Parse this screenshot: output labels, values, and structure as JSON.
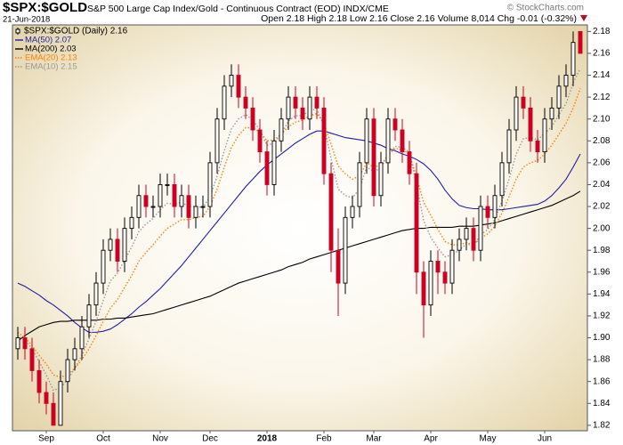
{
  "chart_data": {
    "type": "candlestick",
    "symbol": "$SPX:$GOLD",
    "title": "S&P 500 Large Cap Index/Gold - Continuous Contract (EOD) INDX/CME",
    "subtitle": "21-Jun-2018",
    "quote": "Open 2.18 High 2.18 Low 2.16 Close 2.16 Volume 8,014 Chg -0.01 (-0.32%)",
    "watermark": "© StockCharts.com",
    "name": "$SPX:$GOLD (Daily) 2.16",
    "up_color": "#000000",
    "down_color": "#cc0022",
    "legend": "top-left",
    "categories": [
      null,
      null,
      null,
      null,
      "Sep",
      null,
      null,
      null,
      null,
      null,
      null,
      null,
      "Oct",
      null,
      null,
      null,
      null,
      null,
      null,
      null,
      "Nov",
      null,
      null,
      null,
      null,
      null,
      null,
      "Dec",
      null,
      null,
      null,
      null,
      null,
      null,
      null,
      "2018",
      null,
      null,
      null,
      null,
      null,
      null,
      null,
      "Feb",
      null,
      null,
      null,
      null,
      null,
      null,
      "Mar",
      null,
      null,
      null,
      null,
      null,
      null,
      null,
      "Apr",
      null,
      null,
      null,
      null,
      null,
      null,
      null,
      "May",
      null,
      null,
      null,
      null,
      null,
      null,
      null,
      "Jun",
      null,
      null,
      null,
      null,
      null
    ],
    "open": [
      1.89,
      1.9,
      1.89,
      1.87,
      1.85,
      1.84,
      1.82,
      1.86,
      1.88,
      1.89,
      1.91,
      1.93,
      1.95,
      1.98,
      1.99,
      1.97,
      2.0,
      2.01,
      2.03,
      2.02,
      2.02,
      2.04,
      2.04,
      2.02,
      2.03,
      2.01,
      2.02,
      2.02,
      2.06,
      2.1,
      2.13,
      2.14,
      2.12,
      2.11,
      2.09,
      2.07,
      2.04,
      2.08,
      2.1,
      2.12,
      2.11,
      2.1,
      2.12,
      2.11,
      2.05,
      1.98,
      1.95,
      2.01,
      2.02,
      2.06,
      2.1,
      2.03,
      2.06,
      2.1,
      2.09,
      2.07,
      2.05,
      1.96,
      1.93,
      1.97,
      1.96,
      1.95,
      1.98,
      1.99,
      2.0,
      1.98,
      2.02,
      2.01,
      2.03,
      2.06,
      2.09,
      2.12,
      2.11,
      2.08,
      2.07,
      2.1,
      2.11,
      2.13,
      2.14,
      2.18
    ],
    "high": [
      1.91,
      1.91,
      1.9,
      1.88,
      1.86,
      1.85,
      1.87,
      1.89,
      1.9,
      1.92,
      1.94,
      1.96,
      1.99,
      2.0,
      2.0,
      2.01,
      2.02,
      2.04,
      2.04,
      2.03,
      2.05,
      2.05,
      2.05,
      2.04,
      2.04,
      2.03,
      2.03,
      2.07,
      2.11,
      2.14,
      2.15,
      2.15,
      2.13,
      2.12,
      2.1,
      2.08,
      2.09,
      2.11,
      2.13,
      2.13,
      2.12,
      2.13,
      2.13,
      2.12,
      2.06,
      2.0,
      2.02,
      2.03,
      2.07,
      2.11,
      2.11,
      2.07,
      2.11,
      2.11,
      2.1,
      2.08,
      2.06,
      1.97,
      1.98,
      1.98,
      1.97,
      1.99,
      2.0,
      2.01,
      2.01,
      2.03,
      2.03,
      2.04,
      2.07,
      2.1,
      2.13,
      2.13,
      2.12,
      2.09,
      2.11,
      2.12,
      2.14,
      2.15,
      2.18,
      2.18
    ],
    "low": [
      1.88,
      1.88,
      1.86,
      1.84,
      1.83,
      1.82,
      1.82,
      1.85,
      1.87,
      1.88,
      1.9,
      1.92,
      1.94,
      1.97,
      1.96,
      1.96,
      1.99,
      2.0,
      2.01,
      2.01,
      2.01,
      2.03,
      2.01,
      2.01,
      2.0,
      2.0,
      2.01,
      2.01,
      2.05,
      2.09,
      2.12,
      2.11,
      2.1,
      2.08,
      2.06,
      2.03,
      2.03,
      2.07,
      2.09,
      2.1,
      2.09,
      2.09,
      2.1,
      2.04,
      1.96,
      1.92,
      1.94,
      2.0,
      2.01,
      2.05,
      2.02,
      2.02,
      2.05,
      2.08,
      2.06,
      2.04,
      1.94,
      1.9,
      1.92,
      1.94,
      1.94,
      1.94,
      1.97,
      1.98,
      1.97,
      1.97,
      2.0,
      2.0,
      2.02,
      2.05,
      2.08,
      2.1,
      2.07,
      2.06,
      2.06,
      2.09,
      2.1,
      2.12,
      2.13,
      2.16
    ],
    "close": [
      1.9,
      1.89,
      1.87,
      1.85,
      1.84,
      1.82,
      1.86,
      1.88,
      1.89,
      1.91,
      1.93,
      1.95,
      1.98,
      1.99,
      1.97,
      2.0,
      2.01,
      2.03,
      2.02,
      2.02,
      2.04,
      2.04,
      2.02,
      2.03,
      2.01,
      2.02,
      2.02,
      2.06,
      2.1,
      2.13,
      2.14,
      2.12,
      2.11,
      2.09,
      2.07,
      2.04,
      2.08,
      2.1,
      2.12,
      2.11,
      2.1,
      2.12,
      2.11,
      2.05,
      1.98,
      1.95,
      2.01,
      2.02,
      2.06,
      2.1,
      2.03,
      2.06,
      2.1,
      2.09,
      2.07,
      2.05,
      1.96,
      1.93,
      1.97,
      1.96,
      1.95,
      1.98,
      1.99,
      2.0,
      1.98,
      2.02,
      2.01,
      2.03,
      2.06,
      2.09,
      2.12,
      2.11,
      2.08,
      2.07,
      2.1,
      2.11,
      2.13,
      2.14,
      2.17,
      2.16
    ],
    "series": [
      {
        "name": "MA(50) 2.07",
        "color": "#1f1fa0",
        "style": "solid",
        "values": [
          1.95,
          1.947,
          1.943,
          1.939,
          1.934,
          1.93,
          1.925,
          1.92,
          1.914,
          1.909,
          1.905,
          1.905,
          1.906,
          1.908,
          1.912,
          1.917,
          1.922,
          1.928,
          1.933,
          1.939,
          1.945,
          1.952,
          1.959,
          1.966,
          1.974,
          1.982,
          1.99,
          1.998,
          2.006,
          2.014,
          2.022,
          2.03,
          2.038,
          2.045,
          2.052,
          2.058,
          2.063,
          2.068,
          2.073,
          2.078,
          2.082,
          2.086,
          2.089,
          2.089,
          2.087,
          2.085,
          2.083,
          2.082,
          2.081,
          2.08,
          2.078,
          2.076,
          2.073,
          2.071,
          2.068,
          2.066,
          2.063,
          2.059,
          2.053,
          2.045,
          2.035,
          2.027,
          2.021,
          2.019,
          2.018,
          2.018,
          2.017,
          2.017,
          2.017,
          2.018,
          2.019,
          2.02,
          2.021,
          2.022,
          2.025,
          2.03,
          2.037,
          2.045,
          2.056,
          2.068
        ]
      },
      {
        "name": "MA(200) 2.03",
        "color": "#000000",
        "style": "solid",
        "values": [
          1.897,
          1.902,
          1.906,
          1.91,
          1.912,
          1.914,
          1.915,
          1.915,
          1.916,
          1.916,
          1.916,
          1.916,
          1.917,
          1.917,
          1.918,
          1.918,
          1.919,
          1.92,
          1.921,
          1.922,
          1.924,
          1.926,
          1.928,
          1.93,
          1.932,
          1.934,
          1.936,
          1.938,
          1.941,
          1.944,
          1.947,
          1.95,
          1.952,
          1.954,
          1.956,
          1.958,
          1.96,
          1.962,
          1.965,
          1.967,
          1.969,
          1.972,
          1.974,
          1.976,
          1.978,
          1.98,
          1.982,
          1.984,
          1.986,
          1.988,
          1.99,
          1.992,
          1.994,
          1.996,
          1.998,
          1.999,
          2.0,
          2.0,
          2.001,
          2.001,
          2.001,
          2.001,
          2.002,
          2.002,
          2.002,
          2.003,
          2.004,
          2.005,
          2.007,
          2.009,
          2.011,
          2.013,
          2.015,
          2.017,
          2.019,
          2.021,
          2.024,
          2.027,
          2.03,
          2.034
        ]
      },
      {
        "name": "EMA(20) 2.13",
        "color": "#ff7f00",
        "style": "dotted",
        "values": [
          1.905,
          1.9,
          1.893,
          1.884,
          1.876,
          1.866,
          1.864,
          1.866,
          1.872,
          1.88,
          1.89,
          1.902,
          1.915,
          1.927,
          1.935,
          1.946,
          1.957,
          1.97,
          1.978,
          1.985,
          1.993,
          2.0,
          2.004,
          2.008,
          2.008,
          2.01,
          2.011,
          2.02,
          2.036,
          2.056,
          2.074,
          2.085,
          2.092,
          2.092,
          2.088,
          2.08,
          2.081,
          2.086,
          2.093,
          2.097,
          2.099,
          2.103,
          2.105,
          2.096,
          2.077,
          2.057,
          2.05,
          2.045,
          2.048,
          2.06,
          2.056,
          2.058,
          2.067,
          2.073,
          2.072,
          2.068,
          2.047,
          2.024,
          2.012,
          1.999,
          1.988,
          1.985,
          1.985,
          1.987,
          1.985,
          1.991,
          1.995,
          2.002,
          2.014,
          2.029,
          2.045,
          2.056,
          2.06,
          2.062,
          2.068,
          2.076,
          2.086,
          2.096,
          2.11,
          2.128
        ]
      },
      {
        "name": "EMA(10) 2.15",
        "color": "#999999",
        "style": "dotted",
        "values": [
          1.902,
          1.898,
          1.89,
          1.878,
          1.866,
          1.852,
          1.854,
          1.862,
          1.872,
          1.884,
          1.899,
          1.915,
          1.934,
          1.952,
          1.959,
          1.971,
          1.983,
          1.997,
          2.004,
          2.009,
          2.017,
          2.023,
          2.022,
          2.024,
          2.02,
          2.02,
          2.019,
          2.029,
          2.048,
          2.071,
          2.091,
          2.1,
          2.104,
          2.099,
          2.09,
          2.076,
          2.078,
          2.086,
          2.098,
          2.103,
          2.103,
          2.108,
          2.109,
          2.094,
          2.064,
          2.036,
          2.03,
          2.028,
          2.036,
          2.056,
          2.052,
          2.055,
          2.068,
          2.075,
          2.074,
          2.07,
          2.04,
          2.007,
          1.992,
          1.982,
          1.974,
          1.976,
          1.98,
          1.986,
          1.984,
          1.994,
          1.999,
          2.008,
          2.025,
          2.045,
          2.068,
          2.082,
          2.083,
          2.081,
          2.087,
          2.093,
          2.104,
          2.114,
          2.133,
          2.146
        ]
      }
    ],
    "ylim": [
      1.815,
      2.186
    ],
    "yticks": [
      1.82,
      1.84,
      1.86,
      1.88,
      {
        "value": 1.9,
        "label": "1.90"
      },
      1.92,
      1.94,
      1.96,
      1.98,
      {
        "value": 2,
        "label": "2.00"
      },
      2.02,
      2.04,
      2.06,
      2.08,
      {
        "value": 2.1,
        "label": "2.10"
      },
      2.12,
      2.14,
      2.16,
      2.18
    ]
  }
}
